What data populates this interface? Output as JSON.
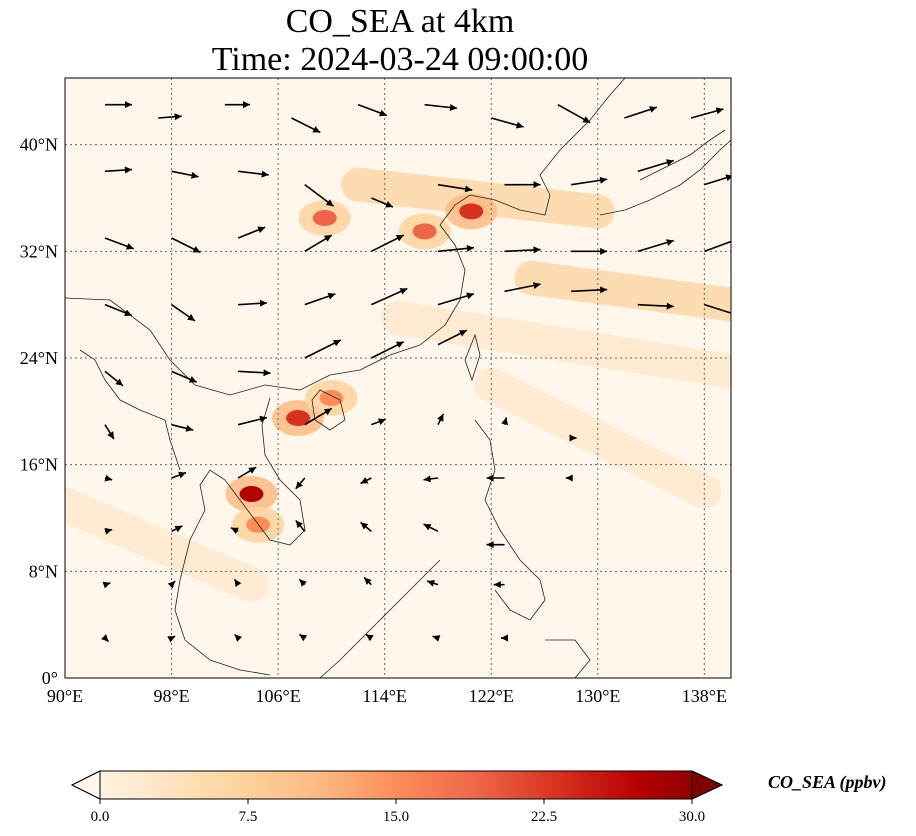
{
  "title_line1": "CO_SEA at 4km",
  "title_line2": "Time: 2024-03-24 09:00:00",
  "map": {
    "lon_range": [
      90,
      140
    ],
    "lat_range": [
      0,
      45
    ],
    "lon_ticks": [
      90,
      98,
      106,
      114,
      122,
      130,
      138
    ],
    "lon_tick_labels": [
      "90°E",
      "98°E",
      "106°E",
      "114°E",
      "122°E",
      "130°E",
      "138°E"
    ],
    "lat_ticks": [
      0,
      8,
      16,
      24,
      32,
      40
    ],
    "lat_tick_labels": [
      "0°",
      "8°N",
      "16°N",
      "24°N",
      "32°N",
      "40°N"
    ],
    "gridlines": "dotted",
    "field": "CO_SEA",
    "hotspots": [
      {
        "lon": 109.5,
        "lat": 34.5,
        "value": 20
      },
      {
        "lon": 120.5,
        "lat": 35.0,
        "value": 24
      },
      {
        "lon": 117.0,
        "lat": 33.5,
        "value": 18
      },
      {
        "lon": 107.5,
        "lat": 19.5,
        "value": 24
      },
      {
        "lon": 110.0,
        "lat": 21.0,
        "value": 16
      },
      {
        "lon": 104.0,
        "lat": 13.8,
        "value": 26
      },
      {
        "lon": 104.5,
        "lat": 11.5,
        "value": 14
      }
    ],
    "plume_bands": [
      {
        "from": [
          112,
          37
        ],
        "to": [
          130,
          35
        ],
        "value": 6
      },
      {
        "from": [
          125,
          30
        ],
        "to": [
          140,
          28
        ],
        "value": 8
      },
      {
        "from": [
          115,
          27
        ],
        "to": [
          140,
          23
        ],
        "value": 5
      },
      {
        "from": [
          122,
          22
        ],
        "to": [
          138,
          14
        ],
        "value": 3
      },
      {
        "from": [
          90,
          13
        ],
        "to": [
          104,
          7
        ],
        "value": 4
      }
    ],
    "wind_arrows": [
      {
        "lon": 93,
        "lat": 43,
        "u": 1.5,
        "v": 0
      },
      {
        "lon": 97,
        "lat": 42,
        "u": 1.3,
        "v": 0.1
      },
      {
        "lon": 102,
        "lat": 43,
        "u": 1.4,
        "v": 0
      },
      {
        "lon": 107,
        "lat": 42,
        "u": 1.6,
        "v": -0.8
      },
      {
        "lon": 112,
        "lat": 43,
        "u": 1.6,
        "v": -0.6
      },
      {
        "lon": 117,
        "lat": 43,
        "u": 1.8,
        "v": -0.2
      },
      {
        "lon": 122,
        "lat": 42,
        "u": 1.8,
        "v": -0.5
      },
      {
        "lon": 127,
        "lat": 43,
        "u": 1.8,
        "v": -1.0
      },
      {
        "lon": 132,
        "lat": 42,
        "u": 1.8,
        "v": 0.6
      },
      {
        "lon": 137,
        "lat": 42,
        "u": 1.8,
        "v": 0.5
      },
      {
        "lon": 93,
        "lat": 38,
        "u": 1.5,
        "v": 0.1
      },
      {
        "lon": 98,
        "lat": 38,
        "u": 1.5,
        "v": -0.3
      },
      {
        "lon": 103,
        "lat": 38,
        "u": 1.7,
        "v": -0.2
      },
      {
        "lon": 108,
        "lat": 37,
        "u": 1.6,
        "v": -1.2
      },
      {
        "lon": 113,
        "lat": 36,
        "u": 1.2,
        "v": -0.5
      },
      {
        "lon": 118,
        "lat": 37,
        "u": 1.9,
        "v": -0.3
      },
      {
        "lon": 123,
        "lat": 37,
        "u": 2.0,
        "v": 0
      },
      {
        "lon": 128,
        "lat": 37,
        "u": 2.0,
        "v": 0.3
      },
      {
        "lon": 133,
        "lat": 38,
        "u": 2.0,
        "v": 0.6
      },
      {
        "lon": 138,
        "lat": 37,
        "u": 1.6,
        "v": 0.5
      },
      {
        "lon": 93,
        "lat": 33,
        "u": 1.6,
        "v": -0.6
      },
      {
        "lon": 98,
        "lat": 33,
        "u": 1.6,
        "v": -0.8
      },
      {
        "lon": 103,
        "lat": 33,
        "u": 1.5,
        "v": 0.6
      },
      {
        "lon": 108,
        "lat": 32,
        "u": 1.5,
        "v": 0.9
      },
      {
        "lon": 113,
        "lat": 32,
        "u": 1.8,
        "v": 0.9
      },
      {
        "lon": 118,
        "lat": 32,
        "u": 2.0,
        "v": 0.2
      },
      {
        "lon": 123,
        "lat": 32,
        "u": 2.0,
        "v": 0.1
      },
      {
        "lon": 128,
        "lat": 32,
        "u": 2.0,
        "v": 0
      },
      {
        "lon": 133,
        "lat": 32,
        "u": 2.0,
        "v": 0.6
      },
      {
        "lon": 138,
        "lat": 32,
        "u": 1.9,
        "v": 0.7
      },
      {
        "lon": 93,
        "lat": 28,
        "u": 1.5,
        "v": -0.6
      },
      {
        "lon": 98,
        "lat": 28,
        "u": 1.3,
        "v": -0.9
      },
      {
        "lon": 103,
        "lat": 28,
        "u": 1.6,
        "v": 0.1
      },
      {
        "lon": 108,
        "lat": 28,
        "u": 1.7,
        "v": 0.6
      },
      {
        "lon": 113,
        "lat": 28,
        "u": 2.0,
        "v": 0.9
      },
      {
        "lon": 118,
        "lat": 28,
        "u": 2.0,
        "v": 0.6
      },
      {
        "lon": 123,
        "lat": 29,
        "u": 2.0,
        "v": 0.4
      },
      {
        "lon": 128,
        "lat": 29,
        "u": 2.0,
        "v": 0.1
      },
      {
        "lon": 133,
        "lat": 28,
        "u": 2.0,
        "v": -0.1
      },
      {
        "lon": 138,
        "lat": 28,
        "u": 1.9,
        "v": -0.6
      },
      {
        "lon": 93,
        "lat": 23,
        "u": 1.0,
        "v": -0.8
      },
      {
        "lon": 98,
        "lat": 23,
        "u": 1.4,
        "v": -0.6
      },
      {
        "lon": 103,
        "lat": 23,
        "u": 1.8,
        "v": -0.1
      },
      {
        "lon": 108,
        "lat": 24,
        "u": 2.0,
        "v": 1.0
      },
      {
        "lon": 113,
        "lat": 24,
        "u": 1.8,
        "v": 0.9
      },
      {
        "lon": 118,
        "lat": 25,
        "u": 1.6,
        "v": 0.8
      },
      {
        "lon": 93,
        "lat": 19,
        "u": 0.5,
        "v": -0.8
      },
      {
        "lon": 98,
        "lat": 19,
        "u": 1.2,
        "v": -0.3
      },
      {
        "lon": 103,
        "lat": 19,
        "u": 1.6,
        "v": 0.4
      },
      {
        "lon": 108,
        "lat": 19,
        "u": 1.5,
        "v": 0.9
      },
      {
        "lon": 113,
        "lat": 19,
        "u": 0.8,
        "v": 0.3
      },
      {
        "lon": 118,
        "lat": 19,
        "u": 0.3,
        "v": 0.6
      },
      {
        "lon": 123,
        "lat": 19,
        "u": 0.1,
        "v": 0.4
      },
      {
        "lon": 128,
        "lat": 18,
        "u": 0.3,
        "v": 0
      },
      {
        "lon": 93,
        "lat": 15,
        "u": 0.4,
        "v": -0.1
      },
      {
        "lon": 98,
        "lat": 15,
        "u": 0.8,
        "v": 0.3
      },
      {
        "lon": 103,
        "lat": 15,
        "u": 1.0,
        "v": 0.6
      },
      {
        "lon": 108,
        "lat": 15,
        "u": -0.5,
        "v": -0.6
      },
      {
        "lon": 113,
        "lat": 15,
        "u": -0.6,
        "v": -0.3
      },
      {
        "lon": 118,
        "lat": 15,
        "u": -0.8,
        "v": -0.1
      },
      {
        "lon": 123,
        "lat": 15,
        "u": -1.0,
        "v": 0
      },
      {
        "lon": 128,
        "lat": 15,
        "u": -0.3,
        "v": 0
      },
      {
        "lon": 93,
        "lat": 11,
        "u": 0.4,
        "v": 0.1
      },
      {
        "lon": 98,
        "lat": 11,
        "u": 0.6,
        "v": 0.3
      },
      {
        "lon": 103,
        "lat": 11,
        "u": -0.4,
        "v": 0.2
      },
      {
        "lon": 108,
        "lat": 11,
        "u": -0.5,
        "v": 0.6
      },
      {
        "lon": 113,
        "lat": 11,
        "u": -0.6,
        "v": 0.5
      },
      {
        "lon": 118,
        "lat": 11,
        "u": -0.8,
        "v": 0.4
      },
      {
        "lon": 123,
        "lat": 10,
        "u": -1.0,
        "v": 0
      },
      {
        "lon": 93,
        "lat": 7,
        "u": 0.3,
        "v": 0.1
      },
      {
        "lon": 98,
        "lat": 7,
        "u": 0.2,
        "v": 0.2
      },
      {
        "lon": 103,
        "lat": 7,
        "u": -0.2,
        "v": 0.3
      },
      {
        "lon": 108,
        "lat": 7,
        "u": -0.3,
        "v": 0.3
      },
      {
        "lon": 113,
        "lat": 7,
        "u": -0.4,
        "v": 0.4
      },
      {
        "lon": 118,
        "lat": 7,
        "u": -0.6,
        "v": 0.2
      },
      {
        "lon": 123,
        "lat": 7,
        "u": -0.6,
        "v": 0
      },
      {
        "lon": 93,
        "lat": 3,
        "u": 0.2,
        "v": -0.2
      },
      {
        "lon": 98,
        "lat": 3,
        "u": 0.2,
        "v": 0.1
      },
      {
        "lon": 103,
        "lat": 3,
        "u": -0.2,
        "v": 0.2
      },
      {
        "lon": 108,
        "lat": 3,
        "u": -0.3,
        "v": 0.2
      },
      {
        "lon": 113,
        "lat": 3,
        "u": -0.3,
        "v": 0.2
      },
      {
        "lon": 118,
        "lat": 3,
        "u": -0.3,
        "v": 0.1
      },
      {
        "lon": 123,
        "lat": 3,
        "u": -0.2,
        "v": 0
      }
    ]
  },
  "colorbar": {
    "min": 0.0,
    "max": 30.0,
    "tick_labels": [
      "0.0",
      "7.5",
      "15.0",
      "22.5",
      "30.0"
    ],
    "label": "CO_SEA (ppbv)",
    "extend": "both",
    "colormap": "OrRd",
    "stops": [
      "#fff7ec",
      "#fee8c8",
      "#fdd49e",
      "#fdbb84",
      "#fc8d59",
      "#ef6548",
      "#d7301f",
      "#b30000",
      "#7f0000"
    ]
  }
}
